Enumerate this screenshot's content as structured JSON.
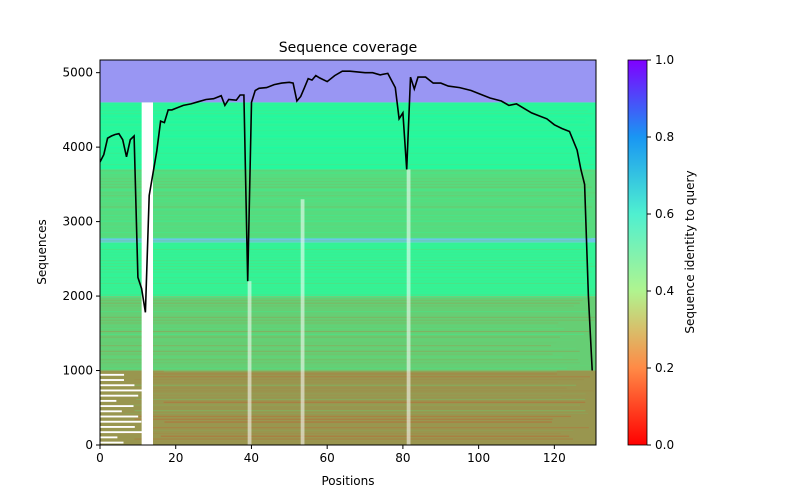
{
  "chart_data": {
    "type": "heatmap",
    "title": "Sequence coverage",
    "xlabel": "Positions",
    "ylabel": "Sequences",
    "xlim": [
      0,
      131
    ],
    "ylim": [
      0,
      5170
    ],
    "x_ticks": [
      0,
      20,
      40,
      60,
      80,
      100,
      120
    ],
    "y_ticks": [
      0,
      1000,
      2000,
      3000,
      4000,
      5000
    ],
    "colorbar": {
      "label": "Sequence identity to query",
      "range": [
        0,
        1
      ],
      "ticks": [
        "0.0",
        "0.2",
        "0.4",
        "0.6",
        "0.8",
        "1.0"
      ],
      "colormap": "rainbow_r"
    },
    "heatmap_bands": [
      {
        "from": 4600,
        "to": 5170,
        "identity": 0.8
      },
      {
        "from": 2720,
        "to": 2780,
        "identity": 0.72
      },
      {
        "from": 3700,
        "to": 4600,
        "identity": 0.42
      },
      {
        "from": 2780,
        "to": 3700,
        "identity": 0.33
      },
      {
        "from": 2000,
        "to": 2720,
        "identity": 0.4
      },
      {
        "from": 1000,
        "to": 2000,
        "identity": 0.3
      },
      {
        "from": 0,
        "to": 1000,
        "identity": 0.2
      }
    ],
    "coverage_line": {
      "x": [
        0,
        1,
        2,
        3,
        4,
        5,
        6,
        7,
        8,
        9,
        10,
        11,
        12,
        13,
        14,
        15,
        16,
        17,
        18,
        19,
        20,
        22,
        24,
        26,
        28,
        30,
        32,
        33,
        34,
        36,
        37,
        38,
        39,
        40,
        41,
        42,
        44,
        46,
        48,
        50,
        51,
        52,
        53,
        54,
        55,
        56,
        57,
        58,
        60,
        62,
        64,
        66,
        68,
        70,
        72,
        74,
        76,
        78,
        79,
        80,
        81,
        82,
        83,
        84,
        86,
        88,
        90,
        92,
        95,
        98,
        100,
        103,
        106,
        108,
        110,
        112,
        114,
        116,
        118,
        120,
        122,
        124,
        126,
        127,
        128,
        129,
        130
      ],
      "y": [
        3800,
        3900,
        4120,
        4150,
        4170,
        4180,
        4100,
        3870,
        4100,
        4150,
        2250,
        2100,
        1780,
        3350,
        3650,
        3950,
        4350,
        4330,
        4500,
        4500,
        4520,
        4560,
        4580,
        4610,
        4640,
        4650,
        4690,
        4560,
        4640,
        4630,
        4700,
        4700,
        2200,
        4600,
        4760,
        4790,
        4800,
        4840,
        4860,
        4870,
        4860,
        4620,
        4680,
        4800,
        4920,
        4900,
        4960,
        4930,
        4880,
        4960,
        5020,
        5020,
        5010,
        5000,
        5000,
        4970,
        4990,
        4800,
        4380,
        4460,
        3700,
        4940,
        4780,
        4940,
        4940,
        4860,
        4860,
        4820,
        4800,
        4760,
        4720,
        4660,
        4620,
        4560,
        4580,
        4520,
        4460,
        4420,
        4380,
        4300,
        4250,
        4210,
        3960,
        3700,
        3500,
        2000,
        1000
      ]
    }
  }
}
